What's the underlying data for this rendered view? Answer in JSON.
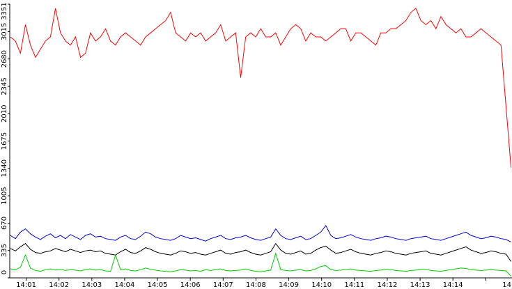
{
  "chart_data": {
    "type": "line",
    "title": "",
    "xlabel": "",
    "ylabel": "",
    "grid": false,
    "legend": "none",
    "x_ticks": [
      "14:01",
      "14:02",
      "14:03",
      "14:04",
      "14:05",
      "14:06",
      "14:07",
      "14:08",
      "14:09",
      "14:10",
      "14:11",
      "14:12",
      "14:13",
      "14:14",
      "14"
    ],
    "y_ticks": [
      0,
      335,
      670,
      1005,
      1340,
      1675,
      2010,
      2345,
      2680,
      3015,
      3351
    ],
    "xlim": [
      14.5,
      29.8
    ],
    "ylim": [
      0,
      3351
    ],
    "series": [
      {
        "color": "#ff0000",
        "values": [
          2950,
          2900,
          2750,
          3100,
          2850,
          2700,
          2800,
          2900,
          2950,
          3300,
          3000,
          2900,
          2850,
          2950,
          2700,
          2750,
          3000,
          2900,
          2950,
          3050,
          2900,
          2850,
          2950,
          3000,
          2950,
          2900,
          2850,
          2950,
          3000,
          3050,
          3100,
          3150,
          3250,
          3000,
          2950,
          2900,
          3000,
          2950,
          3000,
          2900,
          2950,
          3000,
          3100,
          2900,
          2950,
          3000,
          2450,
          2950,
          3000,
          2950,
          3050,
          2950,
          2950,
          3000,
          2850,
          2950,
          3050,
          3100,
          3050,
          2900,
          3000,
          2950,
          2950,
          2900,
          2950,
          3000,
          3050,
          3050,
          2900,
          3000,
          3000,
          2950,
          2900,
          2850,
          3000,
          3000,
          3050,
          3050,
          3100,
          3150,
          3250,
          3300,
          3150,
          3100,
          3150,
          3050,
          3200,
          3100,
          3050,
          3000,
          3050,
          2950,
          2950,
          3000,
          3050,
          3000,
          2950,
          2900,
          2850,
          2100,
          1350
        ],
        "x_start": 14.52,
        "x_step": 0.1525
      },
      {
        "color": "#0000cc",
        "values": [
          520,
          480,
          560,
          600,
          540,
          500,
          470,
          510,
          540,
          490,
          520,
          480,
          530,
          500,
          470,
          520,
          540,
          500,
          510,
          480,
          470,
          460,
          500,
          520,
          480,
          470,
          510,
          560,
          540,
          500,
          480,
          470,
          460,
          480,
          520,
          500,
          480,
          490,
          470,
          450,
          480,
          500,
          520,
          480,
          470,
          490,
          500,
          520,
          490,
          470,
          460,
          480,
          500,
          600,
          520,
          480,
          470,
          490,
          510,
          470,
          480,
          520,
          560,
          640,
          520,
          480,
          490,
          510,
          530,
          500,
          480,
          470,
          460,
          480,
          490,
          510,
          500,
          480,
          470,
          460,
          480,
          490,
          500,
          510,
          480,
          470,
          460,
          480,
          500,
          520,
          540,
          560,
          520,
          500,
          480,
          490,
          510,
          500,
          480,
          470,
          440
        ],
        "x_start": 14.52,
        "x_step": 0.1525
      },
      {
        "color": "#000000",
        "values": [
          360,
          330,
          380,
          420,
          350,
          310,
          300,
          320,
          330,
          360,
          340,
          320,
          350,
          330,
          310,
          330,
          340,
          320,
          330,
          300,
          290,
          280,
          320,
          350,
          310,
          300,
          330,
          370,
          350,
          320,
          300,
          290,
          280,
          300,
          330,
          320,
          300,
          310,
          290,
          280,
          300,
          320,
          340,
          300,
          290,
          310,
          320,
          340,
          310,
          290,
          280,
          300,
          320,
          420,
          340,
          300,
          290,
          310,
          330,
          290,
          300,
          340,
          370,
          390,
          340,
          300,
          310,
          330,
          350,
          320,
          300,
          290,
          280,
          300,
          310,
          330,
          320,
          300,
          290,
          280,
          300,
          310,
          320,
          330,
          300,
          290,
          280,
          300,
          320,
          340,
          360,
          380,
          340,
          320,
          300,
          310,
          330,
          320,
          300,
          290,
          200
        ],
        "x_start": 14.52,
        "x_step": 0.1525
      },
      {
        "color": "#00cc00",
        "values": [
          110,
          100,
          130,
          280,
          120,
          90,
          80,
          100,
          110,
          95,
          105,
          90,
          100,
          95,
          85,
          100,
          110,
          95,
          100,
          85,
          80,
          280,
          100,
          110,
          90,
          85,
          100,
          120,
          105,
          95,
          85,
          80,
          75,
          85,
          100,
          95,
          85,
          90,
          80,
          100,
          90,
          100,
          110,
          90,
          85,
          90,
          95,
          110,
          90,
          80,
          75,
          85,
          95,
          300,
          100,
          90,
          85,
          95,
          100,
          85,
          90,
          110,
          140,
          150,
          100,
          90,
          95,
          100,
          110,
          95,
          90,
          85,
          80,
          90,
          95,
          105,
          100,
          90,
          85,
          80,
          90,
          95,
          100,
          105,
          90,
          85,
          80,
          90,
          100,
          110,
          120,
          115,
          100,
          95,
          90,
          95,
          100,
          95,
          90,
          85,
          20
        ],
        "x_start": 14.52,
        "x_step": 0.1525
      }
    ]
  }
}
